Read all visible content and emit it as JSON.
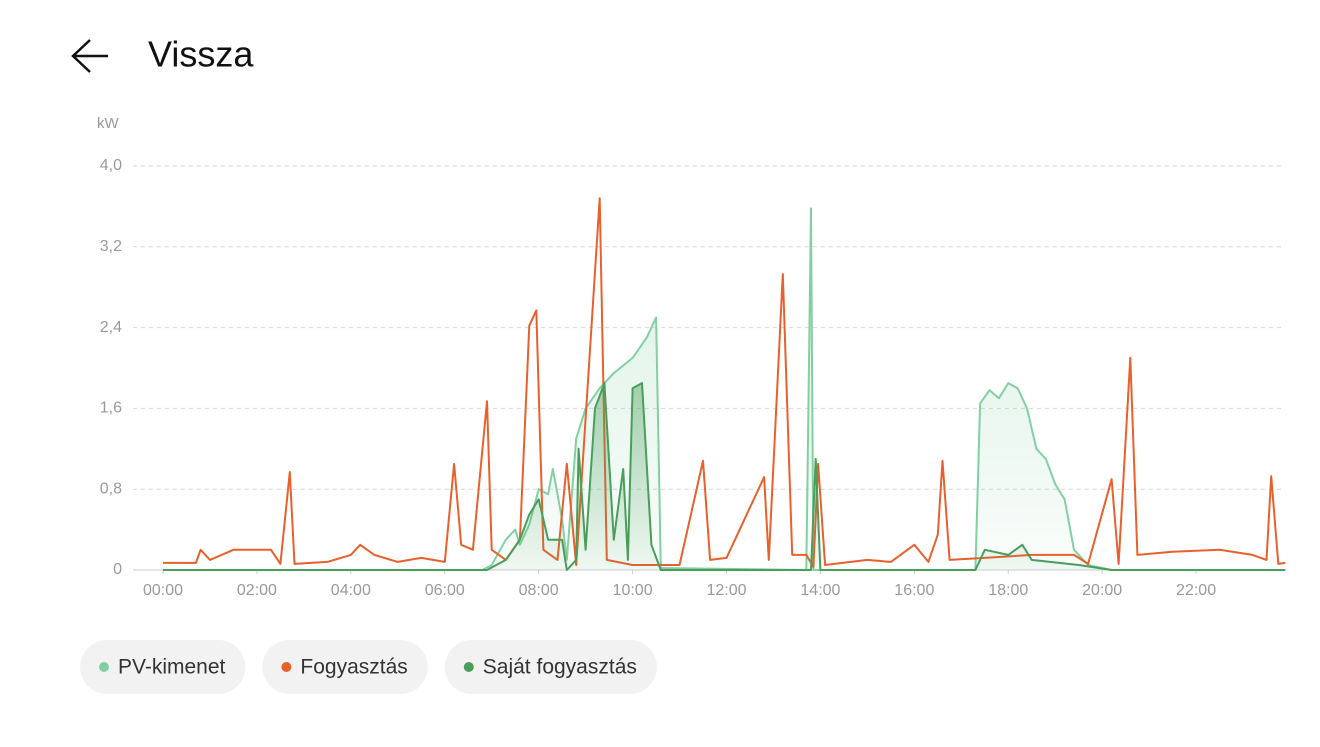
{
  "header": {
    "title": "Vissza"
  },
  "chart_data": {
    "type": "line",
    "y_unit": "kW",
    "xlim": [
      0,
      24
    ],
    "ylim": [
      0,
      4
    ],
    "xticks": [
      {
        "value": 0,
        "label": "00:00"
      },
      {
        "value": 2,
        "label": "02:00"
      },
      {
        "value": 4,
        "label": "04:00"
      },
      {
        "value": 6,
        "label": "06:00"
      },
      {
        "value": 8,
        "label": "08:00"
      },
      {
        "value": 10,
        "label": "10:00"
      },
      {
        "value": 12,
        "label": "12:00"
      },
      {
        "value": 14,
        "label": "14:00"
      },
      {
        "value": 16,
        "label": "16:00"
      },
      {
        "value": 18,
        "label": "18:00"
      },
      {
        "value": 20,
        "label": "20:00"
      },
      {
        "value": 22,
        "label": "22:00"
      }
    ],
    "yticks": [
      0,
      {
        "value": 0.8,
        "label": "0,8"
      },
      {
        "value": 1.6,
        "label": "1,6"
      },
      {
        "value": 2.4,
        "label": "2,4"
      },
      {
        "value": 3.2,
        "label": "3,2"
      },
      {
        "value": 4,
        "label": "4,0"
      }
    ],
    "grid": true,
    "series": [
      {
        "name": "PV-kimenet",
        "color": "#82d0a2",
        "area": true,
        "x": [
          0,
          6.8,
          7.0,
          7.3,
          7.5,
          7.6,
          7.8,
          8.0,
          8.2,
          8.3,
          8.5,
          8.6,
          8.8,
          9.0,
          9.3,
          9.6,
          10.0,
          10.3,
          10.5,
          10.6,
          13.7,
          13.8,
          13.85,
          17.3,
          17.4,
          17.6,
          17.8,
          18.0,
          18.2,
          18.4,
          18.6,
          18.8,
          19.0,
          19.2,
          19.4,
          19.7,
          20.2,
          23.9
        ],
        "values": [
          0,
          0,
          0.05,
          0.3,
          0.4,
          0.25,
          0.45,
          0.8,
          0.75,
          1.0,
          0.5,
          0.1,
          1.3,
          1.6,
          1.8,
          1.95,
          2.1,
          2.3,
          2.5,
          0.02,
          0,
          3.58,
          0,
          0,
          1.65,
          1.78,
          1.7,
          1.85,
          1.8,
          1.6,
          1.2,
          1.1,
          0.85,
          0.7,
          0.2,
          0.05,
          0,
          0
        ]
      },
      {
        "name": "Fogyasztás",
        "color": "#e8602c",
        "area": false,
        "x": [
          0,
          0.7,
          0.8,
          1.0,
          1.5,
          2.3,
          2.5,
          2.7,
          2.8,
          3.5,
          4.0,
          4.2,
          4.5,
          5.0,
          5.5,
          6.0,
          6.2,
          6.35,
          6.6,
          6.9,
          7.0,
          7.3,
          7.6,
          7.8,
          7.95,
          8.1,
          8.4,
          8.6,
          8.8,
          9.3,
          9.45,
          10.0,
          11.0,
          11.5,
          11.65,
          12.0,
          12.8,
          12.9,
          13.2,
          13.4,
          13.7,
          13.85,
          13.95,
          14.1,
          15.0,
          15.5,
          16.0,
          16.3,
          16.5,
          16.6,
          16.75,
          17.5,
          18.5,
          19.4,
          19.7,
          20.2,
          20.35,
          20.6,
          20.75,
          21.5,
          22.5,
          23.2,
          23.5,
          23.6,
          23.75,
          23.9
        ],
        "values": [
          0.07,
          0.07,
          0.2,
          0.1,
          0.2,
          0.2,
          0.06,
          0.97,
          0.06,
          0.08,
          0.15,
          0.25,
          0.15,
          0.08,
          0.12,
          0.08,
          1.05,
          0.25,
          0.2,
          1.67,
          0.2,
          0.1,
          0.3,
          2.42,
          2.57,
          0.2,
          0.1,
          1.05,
          0.05,
          3.68,
          0.1,
          0.05,
          0.05,
          1.08,
          0.1,
          0.12,
          0.92,
          0.1,
          2.93,
          0.15,
          0.15,
          0.03,
          1.05,
          0.05,
          0.1,
          0.08,
          0.25,
          0.08,
          0.35,
          1.08,
          0.1,
          0.12,
          0.15,
          0.15,
          0.06,
          0.9,
          0.06,
          2.1,
          0.15,
          0.18,
          0.2,
          0.15,
          0.1,
          0.93,
          0.06,
          0.07
        ]
      },
      {
        "name": "Saját fogyasztás",
        "color": "#4a9e5c",
        "area": true,
        "x": [
          0,
          6.9,
          7.3,
          7.6,
          7.8,
          8.0,
          8.2,
          8.5,
          8.6,
          8.8,
          8.85,
          9.0,
          9.2,
          9.4,
          9.6,
          9.8,
          9.9,
          10.0,
          10.2,
          10.4,
          10.6,
          13.8,
          13.9,
          14.0,
          17.3,
          17.5,
          18.0,
          18.3,
          18.5,
          19.5,
          20.2,
          23.9
        ],
        "values": [
          0,
          0,
          0.1,
          0.3,
          0.55,
          0.7,
          0.3,
          0.3,
          0,
          0.1,
          1.2,
          0.2,
          1.6,
          1.85,
          0.3,
          1.0,
          0.1,
          1.8,
          1.85,
          0.25,
          0,
          0,
          1.1,
          0,
          0,
          0.2,
          0.15,
          0.25,
          0.1,
          0.05,
          0,
          0
        ]
      }
    ]
  }
}
